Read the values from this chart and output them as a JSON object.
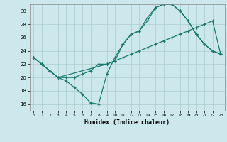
{
  "xlabel": "Humidex (Indice chaleur)",
  "bg_color": "#cce8ec",
  "grid_color": "#aacccc",
  "line_color": "#1a7a6e",
  "xlim": [
    -0.5,
    23.5
  ],
  "ylim": [
    15,
    31
  ],
  "xticks": [
    0,
    1,
    2,
    3,
    4,
    5,
    6,
    7,
    8,
    9,
    10,
    11,
    12,
    13,
    14,
    15,
    16,
    17,
    18,
    19,
    20,
    21,
    22,
    23
  ],
  "yticks": [
    16,
    18,
    20,
    22,
    24,
    26,
    28,
    30
  ],
  "line1_x": [
    0,
    1,
    2,
    3,
    4,
    5,
    6,
    7,
    8,
    9,
    10,
    11,
    12,
    13,
    14,
    15,
    16,
    17,
    18,
    19,
    20,
    21,
    22,
    23
  ],
  "line1_y": [
    23,
    22,
    21,
    20,
    19.5,
    18.5,
    17.5,
    16.2,
    16,
    20.5,
    23,
    25,
    26.5,
    27,
    28.5,
    30.5,
    31,
    31,
    30,
    28.5,
    26.5,
    25,
    24,
    23.5
  ],
  "line2_x": [
    0,
    1,
    2,
    3,
    4,
    5,
    6,
    7,
    8,
    9,
    10,
    11,
    12,
    13,
    14,
    15,
    16,
    17,
    18,
    19,
    20,
    21,
    22,
    23
  ],
  "line2_y": [
    23,
    22,
    21,
    20,
    20,
    20,
    20.5,
    21,
    22,
    22,
    22.5,
    23,
    23.5,
    24,
    24.5,
    25,
    25.5,
    26,
    26.5,
    27,
    27.5,
    28,
    28.5,
    23.5
  ],
  "line3_x": [
    0,
    1,
    2,
    3,
    9,
    10,
    11,
    12,
    13,
    14,
    15,
    16,
    17,
    18,
    19,
    20,
    21,
    22,
    23
  ],
  "line3_y": [
    23,
    22,
    21,
    20,
    22,
    22.5,
    25,
    26.5,
    27,
    29,
    30.5,
    31,
    31,
    30,
    28.5,
    26.5,
    25,
    24,
    23.5
  ]
}
